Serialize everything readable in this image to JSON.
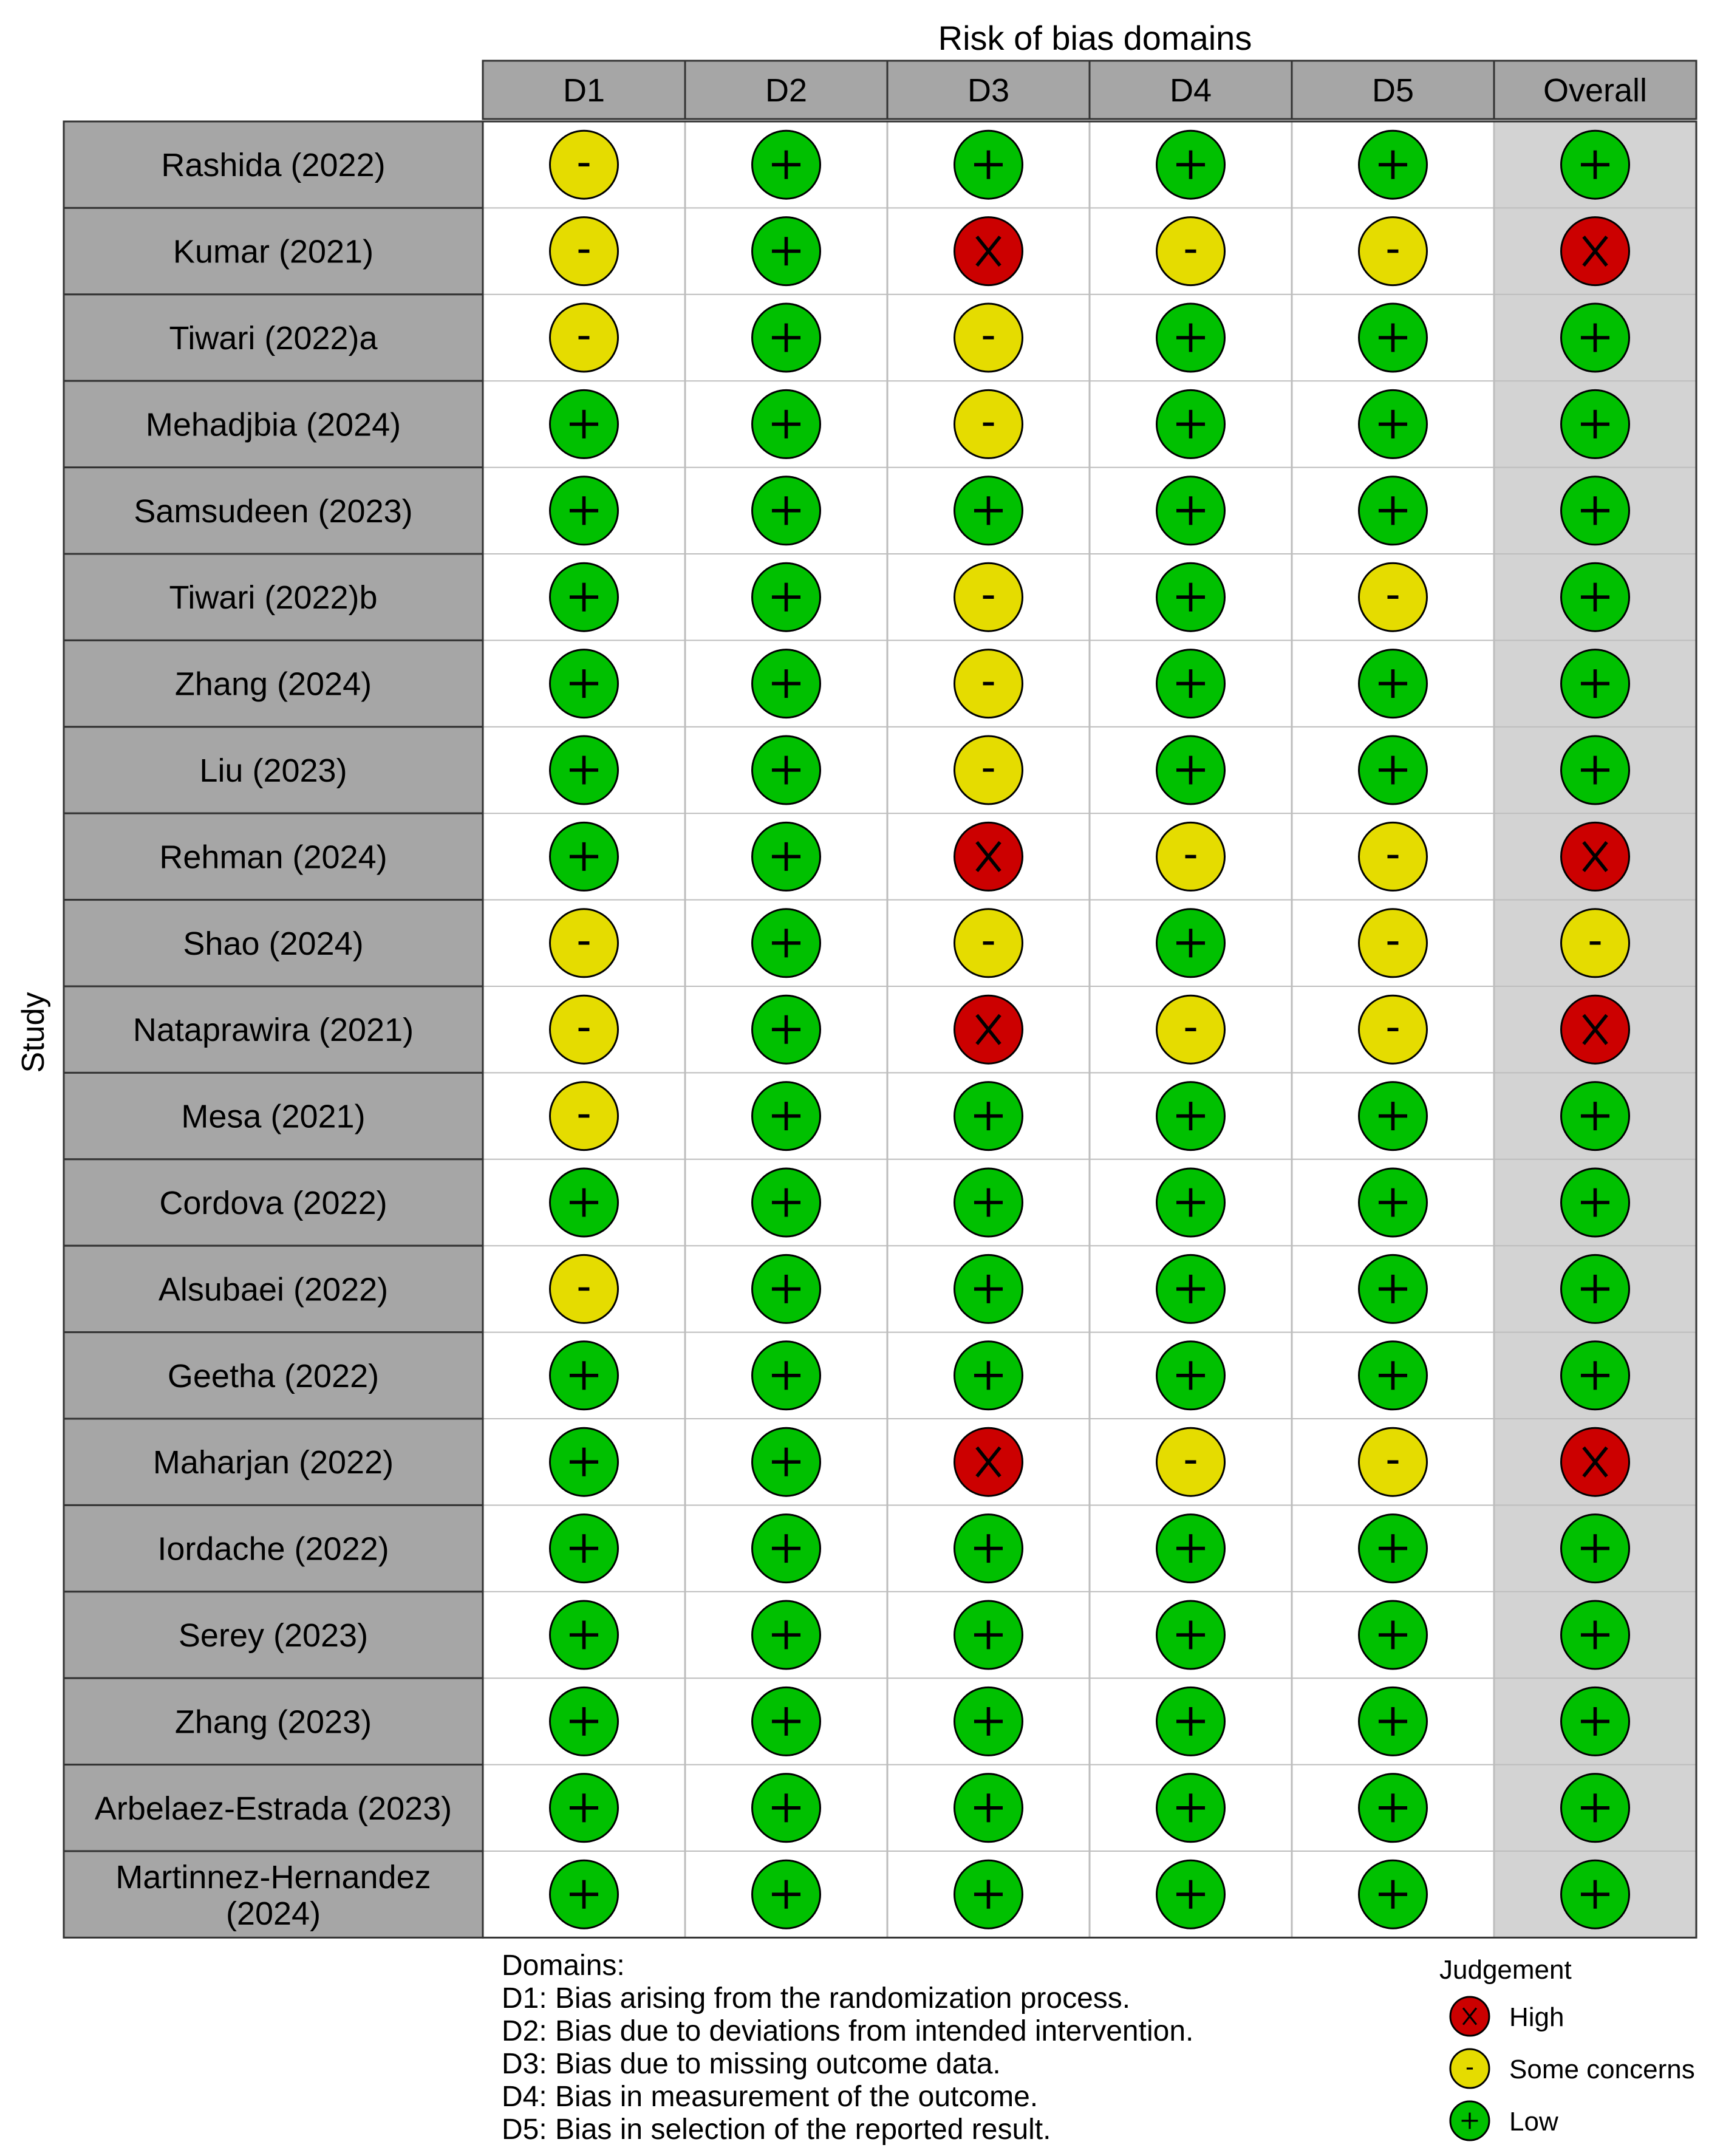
{
  "chart_data": {
    "type": "table",
    "title": "Risk of bias domains",
    "ylabel": "Study",
    "columns": [
      "D1",
      "D2",
      "D3",
      "D4",
      "D5",
      "Overall"
    ],
    "rows": [
      {
        "study": "Rashida (2022)",
        "judgements": [
          "-",
          "+",
          "+",
          "+",
          "+",
          "+"
        ]
      },
      {
        "study": "Kumar (2021)",
        "judgements": [
          "-",
          "+",
          "X",
          "-",
          "-",
          "X"
        ]
      },
      {
        "study": "Tiwari (2022)a",
        "judgements": [
          "-",
          "+",
          "-",
          "+",
          "+",
          "+"
        ]
      },
      {
        "study": "Mehadjbia (2024)",
        "judgements": [
          "+",
          "+",
          "-",
          "+",
          "+",
          "+"
        ]
      },
      {
        "study": "Samsudeen (2023)",
        "judgements": [
          "+",
          "+",
          "+",
          "+",
          "+",
          "+"
        ]
      },
      {
        "study": "Tiwari (2022)b",
        "judgements": [
          "+",
          "+",
          "-",
          "+",
          "-",
          "+"
        ]
      },
      {
        "study": "Zhang (2024)",
        "judgements": [
          "+",
          "+",
          "-",
          "+",
          "+",
          "+"
        ]
      },
      {
        "study": "Liu (2023)",
        "judgements": [
          "+",
          "+",
          "-",
          "+",
          "+",
          "+"
        ]
      },
      {
        "study": "Rehman (2024)",
        "judgements": [
          "+",
          "+",
          "X",
          "-",
          "-",
          "X"
        ]
      },
      {
        "study": "Shao (2024)",
        "judgements": [
          "-",
          "+",
          "-",
          "+",
          "-",
          "-"
        ]
      },
      {
        "study": "Nataprawira (2021)",
        "judgements": [
          "-",
          "+",
          "X",
          "-",
          "-",
          "X"
        ]
      },
      {
        "study": "Mesa (2021)",
        "judgements": [
          "-",
          "+",
          "+",
          "+",
          "+",
          "+"
        ]
      },
      {
        "study": "Cordova (2022)",
        "judgements": [
          "+",
          "+",
          "+",
          "+",
          "+",
          "+"
        ]
      },
      {
        "study": "Alsubaei (2022)",
        "judgements": [
          "-",
          "+",
          "+",
          "+",
          "+",
          "+"
        ]
      },
      {
        "study": "Geetha (2022)",
        "judgements": [
          "+",
          "+",
          "+",
          "+",
          "+",
          "+"
        ]
      },
      {
        "study": "Maharjan (2022)",
        "judgements": [
          "+",
          "+",
          "X",
          "-",
          "-",
          "X"
        ]
      },
      {
        "study": "Iordache (2022)",
        "judgements": [
          "+",
          "+",
          "+",
          "+",
          "+",
          "+"
        ]
      },
      {
        "study": "Serey (2023)",
        "judgements": [
          "+",
          "+",
          "+",
          "+",
          "+",
          "+"
        ]
      },
      {
        "study": "Zhang (2023)",
        "judgements": [
          "+",
          "+",
          "+",
          "+",
          "+",
          "+"
        ]
      },
      {
        "study": "Arbelaez-Estrada (2023)",
        "judgements": [
          "+",
          "+",
          "+",
          "+",
          "+",
          "+"
        ]
      },
      {
        "study": "Martinnez-Hernandez (2024)",
        "judgements": [
          "+",
          "+",
          "+",
          "+",
          "+",
          "+"
        ]
      }
    ],
    "domains_legend": {
      "heading": "Domains:",
      "items": [
        "D1: Bias arising from the randomization process.",
        "D2: Bias due to deviations from intended intervention.",
        "D3: Bias due to missing outcome data.",
        "D4: Bias in measurement of the outcome.",
        "D5: Bias in selection of the reported result."
      ]
    },
    "judgement_legend": {
      "title": "Judgement",
      "items": [
        {
          "symbol": "X",
          "label": "High",
          "color": "#cc0000"
        },
        {
          "symbol": "-",
          "label": "Some concerns",
          "color": "#e5dc00"
        },
        {
          "symbol": "+",
          "label": "Low",
          "color": "#00c000"
        }
      ]
    },
    "colors": {
      "header_fill": "#a6a6a6",
      "study_fill": "#a6a6a6",
      "overall_fill": "#d3d3d3",
      "border": "#333333"
    }
  }
}
